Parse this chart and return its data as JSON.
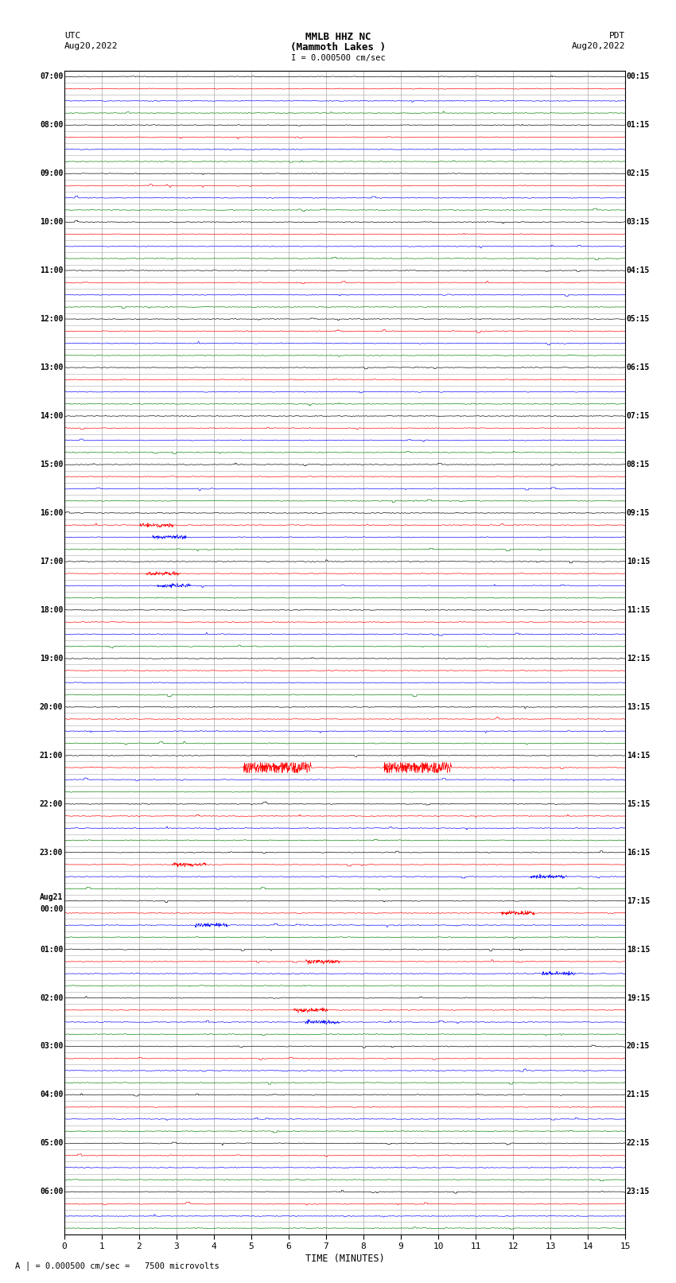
{
  "title_line1": "MMLB HHZ NC",
  "title_line2": "(Mammoth Lakes )",
  "title_line3": "I = 0.000500 cm/sec",
  "left_header_line1": "UTC",
  "left_header_line2": "Aug20,2022",
  "right_header_line1": "PDT",
  "right_header_line2": "Aug20,2022",
  "xlabel": "TIME (MINUTES)",
  "bottom_label": "= 0.000500 cm/sec =   7500 microvolts",
  "xmin": 0,
  "xmax": 15,
  "xticks": [
    0,
    1,
    2,
    3,
    4,
    5,
    6,
    7,
    8,
    9,
    10,
    11,
    12,
    13,
    14,
    15
  ],
  "background_color": "#ffffff",
  "grid_color": "#aaaaaa",
  "trace_colors": [
    "#000000",
    "#ff0000",
    "#0000ff",
    "#008000"
  ],
  "num_subrows": 4,
  "left_labels": [
    "07:00",
    "08:00",
    "09:00",
    "10:00",
    "11:00",
    "12:00",
    "13:00",
    "14:00",
    "15:00",
    "16:00",
    "17:00",
    "18:00",
    "19:00",
    "20:00",
    "21:00",
    "22:00",
    "23:00",
    "Aug21",
    "01:00",
    "02:00",
    "03:00",
    "04:00",
    "05:00",
    "06:00"
  ],
  "aug21_00_label": "00:00",
  "aug21_index": 17,
  "right_labels": [
    "00:15",
    "01:15",
    "02:15",
    "03:15",
    "04:15",
    "05:15",
    "06:15",
    "07:15",
    "08:15",
    "09:15",
    "10:15",
    "11:15",
    "12:15",
    "13:15",
    "14:15",
    "15:15",
    "16:15",
    "17:15",
    "18:15",
    "19:15",
    "20:15",
    "21:15",
    "22:15",
    "23:15"
  ]
}
